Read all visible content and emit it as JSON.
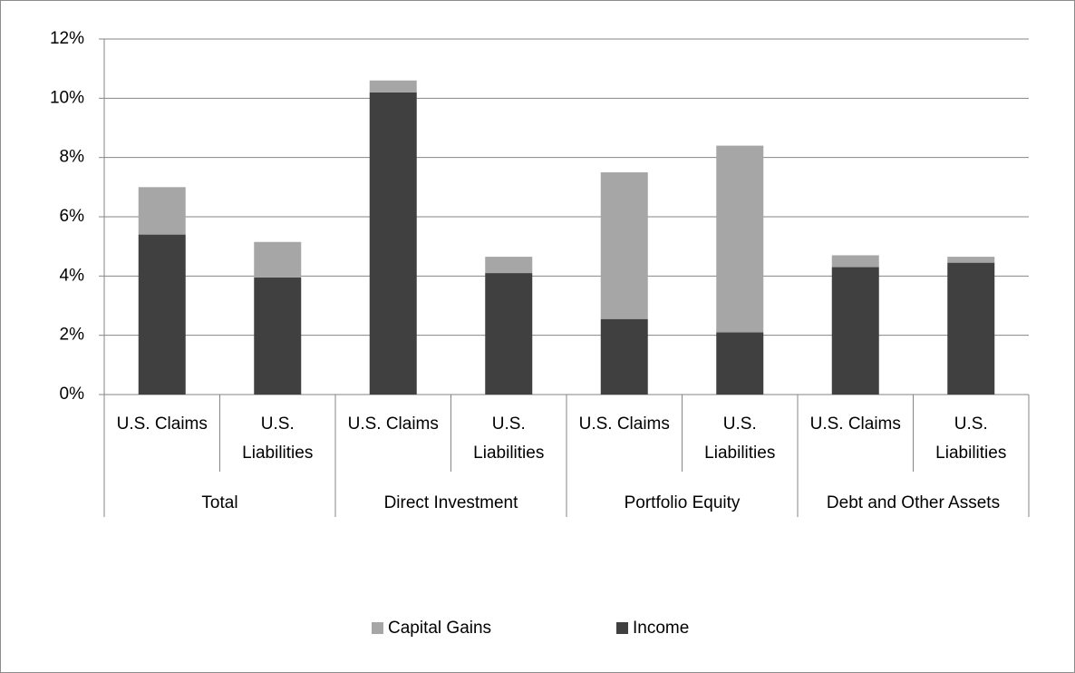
{
  "chart_data": {
    "type": "stacked_bar",
    "categories": [
      "U.S. Claims",
      "U.S. Liabilities",
      "U.S. Claims",
      "U.S. Liabilities",
      "U.S. Claims",
      "U.S. Liabilities",
      "U.S. Claims",
      "U.S. Liabilities"
    ],
    "groups": [
      "Total",
      "Direct Investment",
      "Portfolio Equity",
      "Debt and Other Assets"
    ],
    "series": [
      {
        "name": "Capital Gains",
        "color": "#a6a6a6",
        "values": [
          1.6,
          1.2,
          0.4,
          0.55,
          4.95,
          6.3,
          0.4,
          0.2
        ]
      },
      {
        "name": "Income",
        "color": "#404040",
        "values": [
          5.4,
          3.95,
          10.2,
          4.1,
          2.55,
          2.1,
          4.3,
          4.45
        ]
      }
    ],
    "ylim": [
      0,
      12
    ],
    "yticks": [
      {
        "value": 0,
        "label": "0%"
      },
      {
        "value": 2,
        "label": "2%"
      },
      {
        "value": 4,
        "label": "4%"
      },
      {
        "value": 6,
        "label": "6%"
      },
      {
        "value": 8,
        "label": "8%"
      },
      {
        "value": 10,
        "label": "10%"
      },
      {
        "value": 12,
        "label": "12%"
      }
    ],
    "grid": true,
    "legend": "bottom"
  }
}
